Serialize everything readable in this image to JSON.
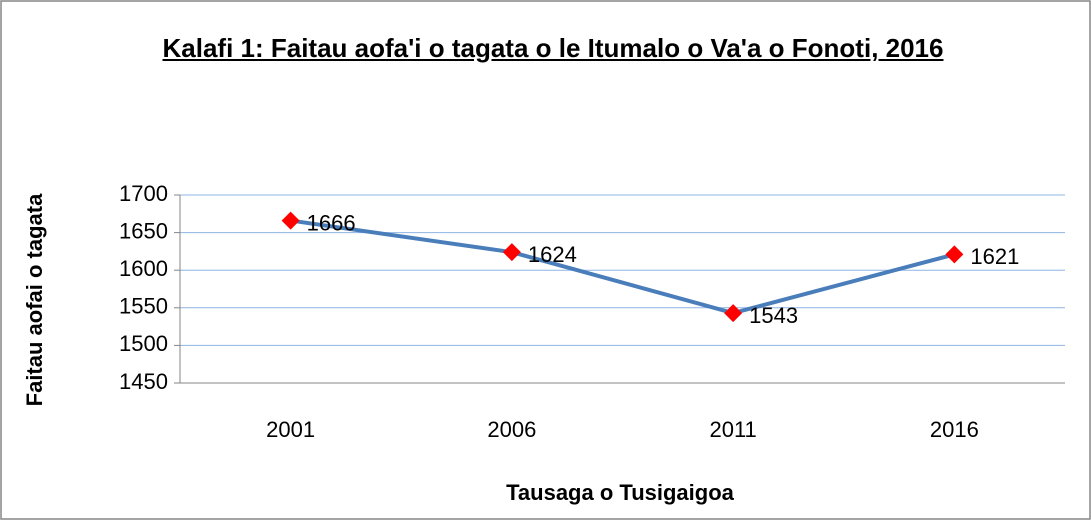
{
  "chart_data": {
    "type": "line",
    "title": "Kalafi 1: Faitau aofa'i o tagata o le Itumalo o Va'a o Fonoti, 2016",
    "x_label": "Tausaga o Tusigaigoa",
    "y_label": "Faitau aofai o tagata",
    "categories": [
      "2001",
      "2006",
      "2011",
      "2016"
    ],
    "series": [
      {
        "name": "Faitau aofai o tagata",
        "color": "#4a7ebb",
        "marker_color": "#ff0000",
        "values": [
          1666,
          1624,
          1543,
          1621
        ]
      }
    ],
    "ylim": [
      1450,
      1700
    ],
    "yticks": [
      1450,
      1500,
      1550,
      1600,
      1650,
      1700
    ],
    "grid": true
  }
}
